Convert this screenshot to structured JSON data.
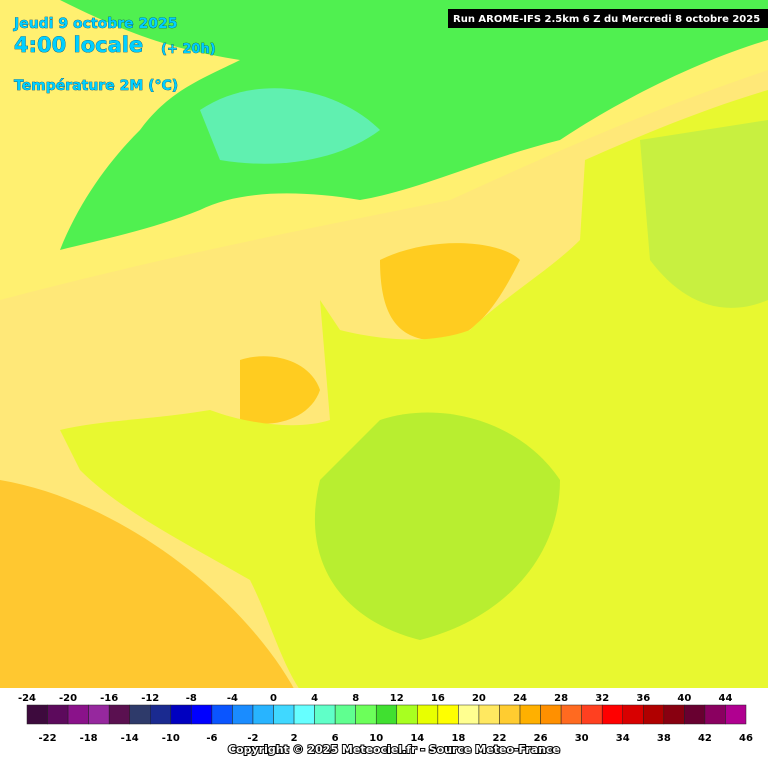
{
  "header": {
    "date": "Jeudi 9 octobre 2025",
    "time": "4:00 locale",
    "offset": "(+ 20h)",
    "variable": "Température 2M (°C)",
    "run": "Run AROME-IFS 2.5km 6 Z du Mercredi 8 octobre 2025"
  },
  "colorbar": {
    "ticks": [
      -24,
      -22,
      -20,
      -18,
      -16,
      -14,
      -12,
      -10,
      -8,
      -6,
      -4,
      -2,
      0,
      2,
      4,
      6,
      8,
      10,
      12,
      14,
      16,
      18,
      20,
      22,
      24,
      26,
      28,
      30,
      32,
      34,
      36,
      38,
      40,
      42,
      44,
      46
    ],
    "colors": [
      "#3d0a3d",
      "#5c0a5c",
      "#8a128a",
      "#96289e",
      "#5a1050",
      "#2e3a6a",
      "#1a2a90",
      "#0000c0",
      "#0000ff",
      "#0a55ff",
      "#1a8cff",
      "#28b4ff",
      "#40d8ff",
      "#66ffff",
      "#60ffc8",
      "#60ff90",
      "#6cff5a",
      "#40e030",
      "#a8ff20",
      "#e8ff00",
      "#ffff00",
      "#ffff90",
      "#ffe860",
      "#ffcc30",
      "#ffb000",
      "#ff9000",
      "#ff6a20",
      "#ff4020",
      "#ff0000",
      "#d80000",
      "#b00000",
      "#880010",
      "#680030",
      "#8a0060",
      "#b00090",
      "#d000d0",
      "#ff00ff",
      "#ff80ff"
    ]
  },
  "footer": {
    "copyright": "Copyright © 2025 Meteociel.fr - Source Meteo-France"
  }
}
